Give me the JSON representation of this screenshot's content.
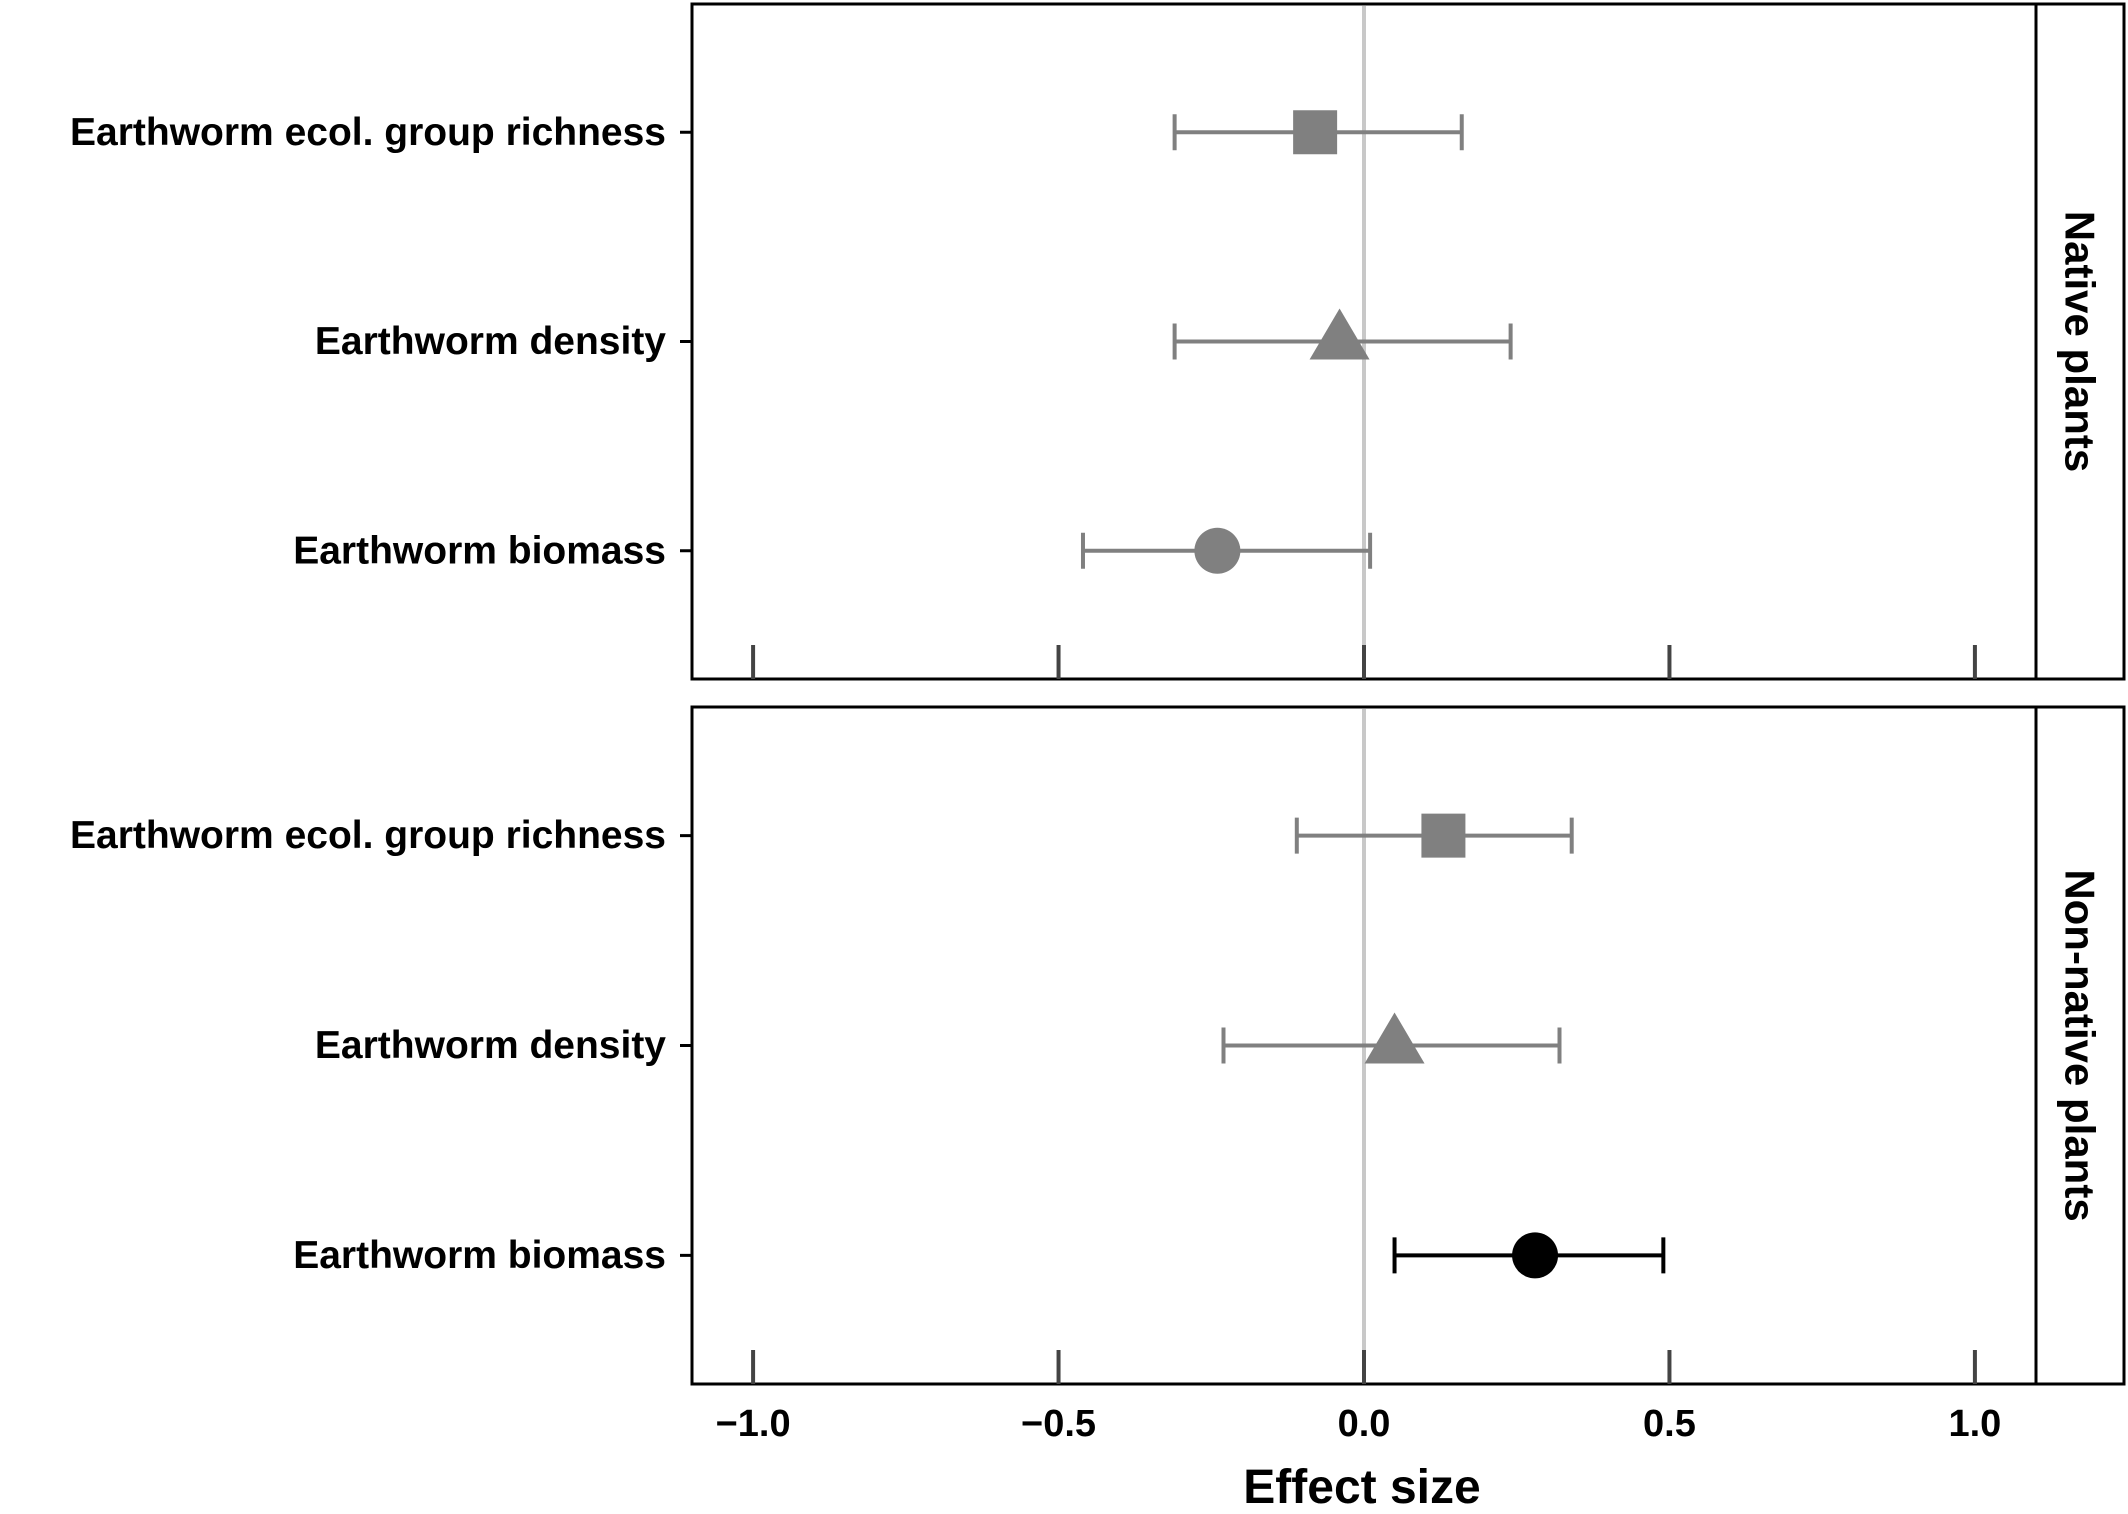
{
  "chart_data": {
    "type": "forest",
    "xlabel": "Effect size",
    "xlim": [
      -1.1,
      1.1
    ],
    "x_ticks": [
      {
        "value": -1.0,
        "label": "−1.0"
      },
      {
        "value": -0.5,
        "label": "−0.5"
      },
      {
        "value": 0.0,
        "label": "0.0"
      },
      {
        "value": 0.5,
        "label": "0.5"
      },
      {
        "value": 1.0,
        "label": "1.0"
      }
    ],
    "reference_line": 0,
    "panels": [
      {
        "strip_label": "Native plants",
        "rows": [
          {
            "label": "Earthworm ecol. group richness",
            "estimate": -0.08,
            "lower": -0.31,
            "upper": 0.16,
            "marker": "square",
            "color": "#808080"
          },
          {
            "label": "Earthworm density",
            "estimate": -0.04,
            "lower": -0.31,
            "upper": 0.24,
            "marker": "triangle",
            "color": "#808080"
          },
          {
            "label": "Earthworm biomass",
            "estimate": -0.24,
            "lower": -0.46,
            "upper": 0.01,
            "marker": "circle",
            "color": "#808080"
          }
        ]
      },
      {
        "strip_label": "Non-native plants",
        "rows": [
          {
            "label": "Earthworm ecol. group richness",
            "estimate": 0.13,
            "lower": -0.11,
            "upper": 0.34,
            "marker": "square",
            "color": "#808080"
          },
          {
            "label": "Earthworm density",
            "estimate": 0.05,
            "lower": -0.23,
            "upper": 0.32,
            "marker": "triangle",
            "color": "#808080"
          },
          {
            "label": "Earthworm biomass",
            "estimate": 0.28,
            "lower": 0.05,
            "upper": 0.49,
            "marker": "circle",
            "color": "#000000"
          }
        ]
      }
    ]
  }
}
